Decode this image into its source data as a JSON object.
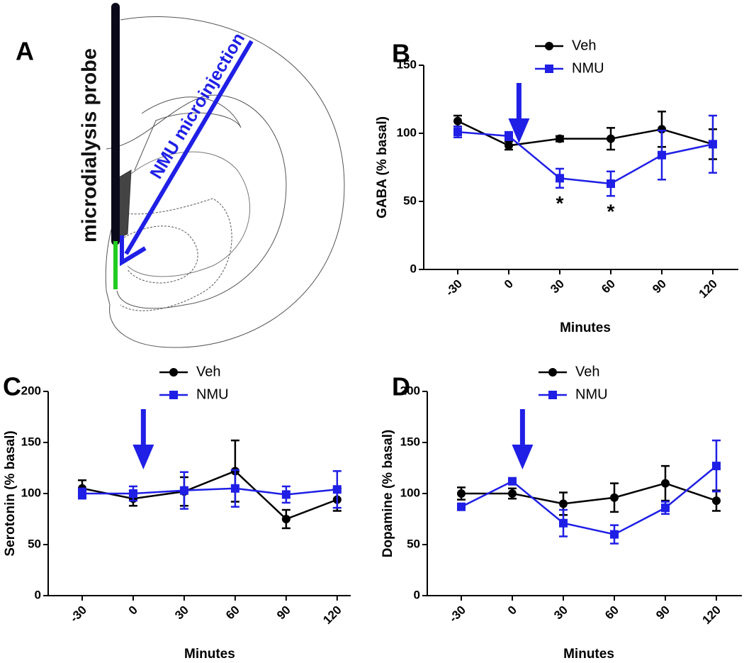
{
  "panel_labels": [
    "A",
    "B",
    "C",
    "D"
  ],
  "diagram": {
    "probe_label": "microdialysis probe",
    "injection_label": "NMU microinjection"
  },
  "chart_data": [
    {
      "type": "line",
      "y_label": "GABA (% basal)",
      "x_label": "Minutes",
      "legend": "top",
      "x": [
        -30,
        0,
        30,
        60,
        90,
        120
      ],
      "xlim": [
        -50,
        135
      ],
      "xticks": [
        -30,
        0,
        30,
        60,
        90,
        120
      ],
      "ylim": [
        0,
        150
      ],
      "yticks": [
        0,
        50,
        100,
        150
      ],
      "grid": false,
      "series": [
        {
          "name": "Veh",
          "color": "#000000",
          "marker": "circle",
          "values": [
            109,
            91,
            96,
            96,
            103,
            92
          ],
          "errors": [
            4,
            3,
            2,
            8,
            13,
            11
          ]
        },
        {
          "name": "NMU",
          "color": "#1f1fe6",
          "marker": "square",
          "values": [
            101,
            98,
            67,
            63,
            84,
            92
          ],
          "errors": [
            4,
            3,
            7,
            9,
            18,
            21
          ]
        }
      ],
      "annotations": [
        {
          "x": 30,
          "text": "*"
        },
        {
          "x": 60,
          "text": "*"
        }
      ]
    },
    {
      "type": "line",
      "y_label": "Serotonin (% basal)",
      "x_label": "Minutes",
      "legend": "top",
      "x": [
        -30,
        0,
        30,
        60,
        90,
        120
      ],
      "xlim": [
        -50,
        128
      ],
      "xticks": [
        -30,
        0,
        30,
        60,
        90,
        120
      ],
      "ylim": [
        0,
        200
      ],
      "yticks": [
        0,
        50,
        100,
        150,
        200
      ],
      "grid": false,
      "series": [
        {
          "name": "Veh",
          "color": "#000000",
          "marker": "circle",
          "values": [
            105,
            95,
            102,
            122,
            75,
            94
          ],
          "errors": [
            8,
            7,
            14,
            30,
            9,
            11
          ]
        },
        {
          "name": "NMU",
          "color": "#1f1fe6",
          "marker": "square",
          "values": [
            100,
            100,
            103,
            105,
            99,
            104
          ],
          "errors": [
            5,
            7,
            18,
            18,
            8,
            18
          ]
        }
      ]
    },
    {
      "type": "line",
      "y_label": "Dopamine (% basal)",
      "x_label": "Minutes",
      "legend": "top",
      "x": [
        -30,
        0,
        30,
        60,
        90,
        120
      ],
      "xlim": [
        -50,
        135
      ],
      "xticks": [
        -30,
        0,
        30,
        60,
        90,
        120
      ],
      "ylim": [
        0,
        200
      ],
      "yticks": [
        0,
        50,
        100,
        150,
        200
      ],
      "grid": false,
      "series": [
        {
          "name": "Veh",
          "color": "#000000",
          "marker": "circle",
          "values": [
            100,
            100,
            90,
            96,
            110,
            93
          ],
          "errors": [
            6,
            5,
            11,
            14,
            17,
            10
          ]
        },
        {
          "name": "NMU",
          "color": "#1f1fe6",
          "marker": "square",
          "values": [
            87,
            112,
            71,
            60,
            86,
            127
          ],
          "errors": [
            2,
            3,
            13,
            9,
            6,
            25
          ]
        }
      ]
    }
  ]
}
